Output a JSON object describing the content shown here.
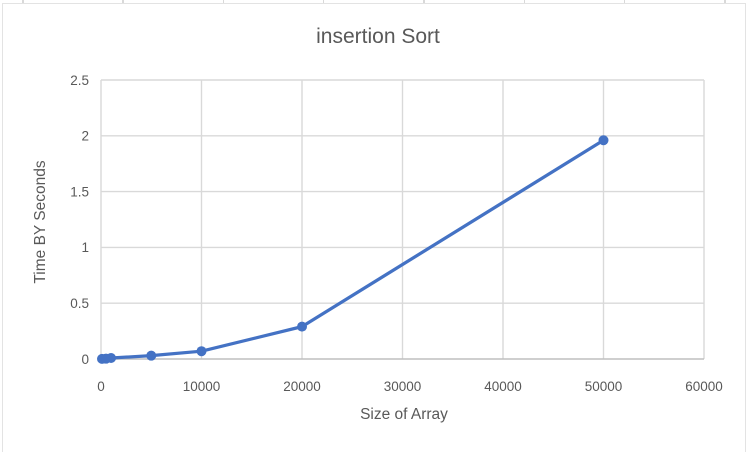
{
  "page": {
    "background": "#ffffff",
    "kind": "excel-embedded-chart"
  },
  "colors": {
    "series": "#4472C4",
    "gridline": "#D9D9D9",
    "axis_line": "#BFBFBF",
    "text": "#595959",
    "chart_border": "#E3E3E3",
    "background": "#FFFFFF"
  },
  "chart_data": {
    "type": "line",
    "title": "insertion Sort",
    "xlabel": "Size of Array",
    "ylabel": "Time BY Seconds",
    "x": [
      100,
      500,
      1000,
      5000,
      10000,
      20000,
      50000
    ],
    "y": [
      0.001,
      0.003,
      0.009,
      0.03,
      0.07,
      0.29,
      1.96
    ],
    "xlim": [
      0,
      60000
    ],
    "ylim": [
      0,
      2.5
    ],
    "x_ticks": [
      0,
      10000,
      20000,
      30000,
      40000,
      50000,
      60000
    ],
    "x_tick_labels": [
      "0",
      "10000",
      "20000",
      "30000",
      "40000",
      "50000",
      "60000"
    ],
    "y_ticks": [
      0,
      0.5,
      1,
      1.5,
      2,
      2.5
    ],
    "y_tick_labels": [
      "0",
      "0.5",
      "1",
      "1.5",
      "2",
      "2.5"
    ],
    "grid": true,
    "legend": "none",
    "marker": "circle",
    "series_color": "#4472C4"
  }
}
